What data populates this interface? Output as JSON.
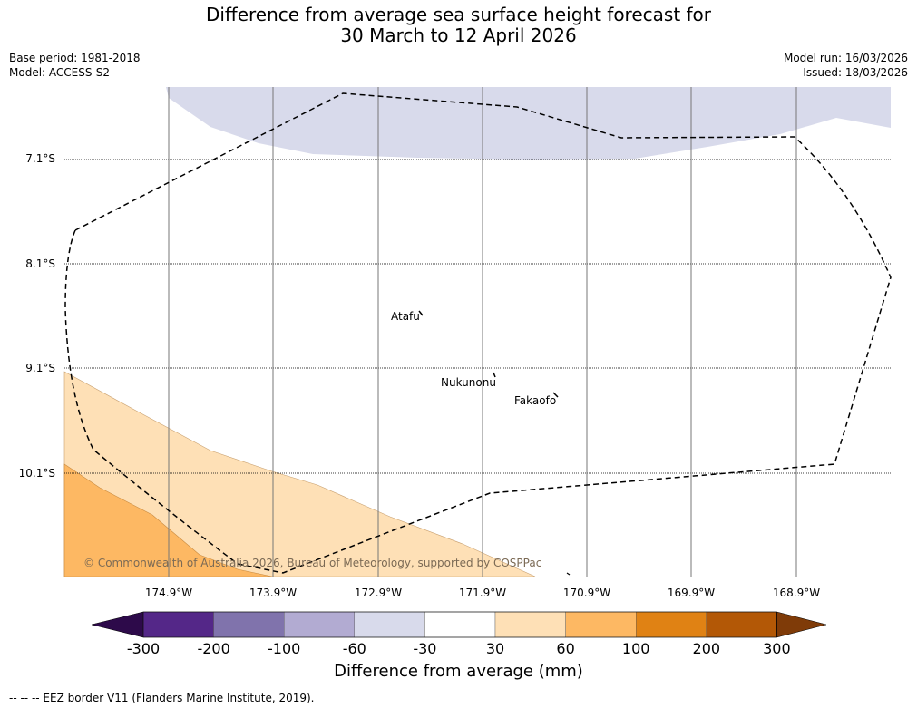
{
  "title": {
    "line1": "Difference from average sea surface height forecast for",
    "line2": "30 March to 12 April 2026"
  },
  "meta": {
    "base_period": "Base period: 1981-2018",
    "model": "Model: ACCESS-S2",
    "model_run": "Model run: 16/03/2026",
    "issued": "Issued: 18/03/2026"
  },
  "map": {
    "latitudes": [
      "7.1°S",
      "8.1°S",
      "9.1°S",
      "10.1°S"
    ],
    "longitudes": [
      "174.9°W",
      "173.9°W",
      "172.9°W",
      "171.9°W",
      "170.9°W",
      "169.9°W",
      "168.9°W"
    ],
    "islands": [
      "Atafu",
      "Nukunonu",
      "Fakaofo"
    ],
    "copyright": "© Commonwealth of Australia 2026, Bureau of Meteorology, supported by COSPPac"
  },
  "colorbar": {
    "ticks": [
      "-300",
      "-200",
      "-100",
      "-60",
      "-30",
      "30",
      "60",
      "100",
      "200",
      "300"
    ],
    "colors": [
      "#2d0a4a",
      "#542788",
      "#8073ac",
      "#b2abd2",
      "#d8daeb",
      "#ffffff",
      "#fee0b6",
      "#fdb863",
      "#e08214",
      "#b35806",
      "#7f3b08"
    ],
    "label": "Difference from average (mm)"
  },
  "footnote": "--  --  -- EEZ border V11 (Flanders Marine Institute, 2019)."
}
